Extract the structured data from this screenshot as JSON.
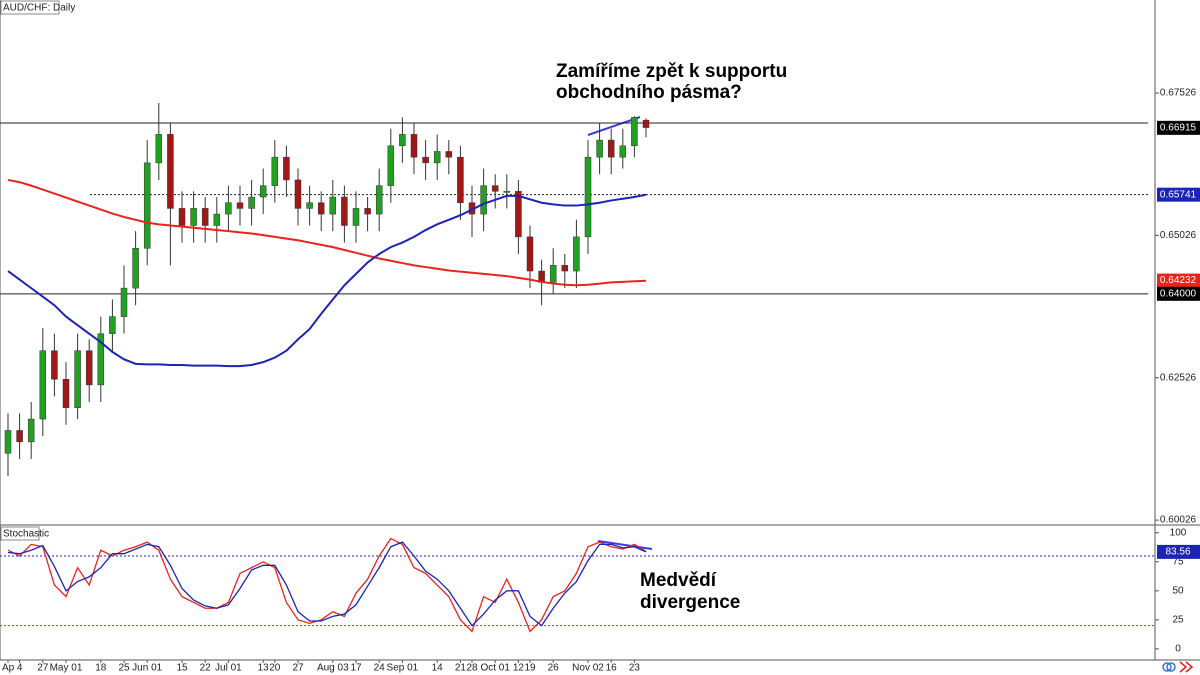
{
  "chart_data": [
    {
      "type": "candlestick",
      "title": "AUD/CHF: Daily",
      "categories": [
        "Ap",
        "4",
        null,
        "27",
        null,
        "May 01",
        null,
        null,
        "18",
        null,
        "25",
        null,
        "Jun 01",
        null,
        null,
        "15",
        null,
        "22",
        null,
        "Jul 01",
        null,
        null,
        "13",
        "20",
        null,
        "27",
        null,
        null,
        "Aug 03",
        null,
        "17",
        null,
        "24",
        null,
        "Sep 01",
        null,
        null,
        "14",
        null,
        "21",
        "28",
        null,
        "Oct 01",
        null,
        "12",
        "19",
        null,
        "26",
        null,
        null,
        "Nov 02",
        null,
        "16",
        null,
        "23",
        null
      ],
      "open": [
        0.612,
        0.616,
        0.614,
        0.618,
        0.63,
        0.625,
        0.62,
        0.63,
        0.624,
        0.633,
        0.636,
        0.641,
        0.648,
        0.663,
        0.668,
        0.655,
        0.652,
        0.655,
        0.652,
        0.654,
        0.656,
        0.655,
        0.657,
        0.659,
        0.664,
        0.66,
        0.655,
        0.656,
        0.654,
        0.657,
        0.652,
        0.655,
        0.654,
        0.659,
        0.666,
        0.668,
        0.664,
        0.663,
        0.665,
        0.664,
        0.656,
        0.654,
        0.659,
        0.658,
        0.658,
        0.65,
        0.644,
        0.642,
        0.645,
        0.644,
        0.65,
        0.664,
        0.667,
        0.664,
        0.666,
        0.6705
      ],
      "high": [
        0.619,
        0.619,
        0.621,
        0.634,
        0.633,
        0.628,
        0.633,
        0.632,
        0.636,
        0.639,
        0.645,
        0.651,
        0.667,
        0.6735,
        0.67,
        0.658,
        0.658,
        0.657,
        0.657,
        0.659,
        0.659,
        0.66,
        0.662,
        0.667,
        0.666,
        0.662,
        0.659,
        0.658,
        0.66,
        0.659,
        0.658,
        0.657,
        0.662,
        0.669,
        0.671,
        0.67,
        0.667,
        0.668,
        0.667,
        0.666,
        0.659,
        0.662,
        0.661,
        0.661,
        0.66,
        0.652,
        0.646,
        0.648,
        0.647,
        0.653,
        0.667,
        0.67,
        0.669,
        0.669,
        0.6712,
        0.6708
      ],
      "low": [
        0.608,
        0.611,
        0.611,
        0.615,
        0.622,
        0.617,
        0.618,
        0.621,
        0.621,
        0.63,
        0.633,
        0.638,
        0.645,
        0.66,
        0.645,
        0.649,
        0.649,
        0.649,
        0.649,
        0.651,
        0.652,
        0.652,
        0.654,
        0.656,
        0.657,
        0.652,
        0.652,
        0.651,
        0.651,
        0.649,
        0.649,
        0.651,
        0.651,
        0.656,
        0.663,
        0.661,
        0.66,
        0.66,
        0.661,
        0.653,
        0.65,
        0.651,
        0.655,
        0.655,
        0.647,
        0.641,
        0.638,
        0.64,
        0.641,
        0.641,
        0.647,
        0.661,
        0.661,
        0.662,
        0.664,
        0.6675
      ],
      "close": [
        0.616,
        0.614,
        0.618,
        0.63,
        0.625,
        0.62,
        0.63,
        0.624,
        0.633,
        0.636,
        0.641,
        0.648,
        0.663,
        0.668,
        0.655,
        0.652,
        0.655,
        0.652,
        0.654,
        0.656,
        0.655,
        0.657,
        0.659,
        0.664,
        0.66,
        0.655,
        0.656,
        0.654,
        0.657,
        0.652,
        0.655,
        0.654,
        0.659,
        0.666,
        0.668,
        0.664,
        0.663,
        0.665,
        0.664,
        0.656,
        0.654,
        0.659,
        0.658,
        0.658,
        0.65,
        0.644,
        0.642,
        0.645,
        0.644,
        0.65,
        0.664,
        0.667,
        0.664,
        0.666,
        0.671,
        0.6692
      ],
      "up_color": "#22a022",
      "down_color": "#a01818",
      "series": [
        {
          "color": "#e8241c",
          "values": [
            0.66,
            0.6596,
            0.659,
            0.6583,
            0.6576,
            0.6569,
            0.6562,
            0.6555,
            0.6548,
            0.6541,
            0.6535,
            0.653,
            0.6525,
            0.6522,
            0.652,
            0.6518,
            0.6516,
            0.6514,
            0.6512,
            0.651,
            0.6508,
            0.6506,
            0.6503,
            0.65,
            0.6497,
            0.6494,
            0.649,
            0.6486,
            0.6482,
            0.6477,
            0.6472,
            0.6467,
            0.6462,
            0.6458,
            0.6454,
            0.645,
            0.6447,
            0.6444,
            0.6441,
            0.6439,
            0.6437,
            0.6435,
            0.6433,
            0.6431,
            0.6428,
            0.6425,
            0.6421,
            0.6418,
            0.6416,
            0.6415,
            0.6416,
            0.6418,
            0.642,
            0.6421,
            0.6422,
            0.6423
          ]
        },
        {
          "color": "#1c24b8",
          "values": [
            0.644,
            0.6425,
            0.641,
            0.6395,
            0.638,
            0.636,
            0.6345,
            0.633,
            0.6315,
            0.6298,
            0.6285,
            0.6277,
            0.6276,
            0.6276,
            0.6275,
            0.6275,
            0.6274,
            0.6274,
            0.6274,
            0.6273,
            0.6273,
            0.6275,
            0.628,
            0.6288,
            0.63,
            0.632,
            0.6338,
            0.6365,
            0.639,
            0.6415,
            0.6435,
            0.6455,
            0.647,
            0.6482,
            0.649,
            0.65,
            0.6512,
            0.6522,
            0.653,
            0.6538,
            0.6548,
            0.6558,
            0.6565,
            0.6572,
            0.6572,
            0.6566,
            0.656,
            0.6557,
            0.6555,
            0.6555,
            0.6557,
            0.656,
            0.6564,
            0.6567,
            0.657,
            0.6574
          ]
        }
      ],
      "ylim": [
        0.5994,
        0.6916
      ],
      "yticks": [
        0.67526,
        0.65026,
        0.62526,
        0.60026
      ],
      "hlines": [
        0.67,
        0.64,
        0.65741
      ],
      "hline_styles": [
        "solid",
        "solid",
        "dotted"
      ],
      "markers": [
        {
          "value": 0.66915,
          "color": "#000000"
        },
        {
          "value": 0.65741,
          "color": "#1c24b8"
        },
        {
          "value": 0.64232,
          "color": "#e8241c"
        },
        {
          "value": 0.64,
          "label": "0.64000",
          "color": "#000000"
        }
      ],
      "annotation": [
        "Zamíříme zpět k supportu",
        "obchodního pásma?"
      ]
    },
    {
      "type": "stochastic",
      "title": "Stochastic",
      "series": [
        {
          "color": "#e8241c",
          "values": [
            85,
            80,
            90,
            88,
            55,
            45,
            70,
            55,
            85,
            80,
            85,
            88,
            92,
            85,
            60,
            45,
            40,
            35,
            35,
            40,
            65,
            70,
            75,
            70,
            40,
            25,
            22,
            25,
            32,
            28,
            48,
            60,
            80,
            95,
            90,
            70,
            65,
            55,
            45,
            25,
            15,
            45,
            40,
            60,
            40,
            15,
            25,
            45,
            50,
            65,
            88,
            92,
            88,
            86,
            90,
            84
          ]
        },
        {
          "color": "#1c24b8",
          "values": [
            83,
            82,
            85,
            89,
            71,
            50,
            58,
            62,
            70,
            82,
            82,
            86,
            90,
            88,
            72,
            52,
            42,
            37,
            35,
            38,
            52,
            68,
            72,
            72,
            55,
            32,
            24,
            24,
            28,
            30,
            38,
            54,
            70,
            88,
            92,
            80,
            67,
            60,
            50,
            35,
            20,
            30,
            42,
            50,
            50,
            28,
            20,
            35,
            48,
            58,
            76,
            90,
            90,
            87,
            88,
            83.56
          ]
        }
      ],
      "ylim": [
        -9.6,
        105
      ],
      "yticks": [
        100,
        75,
        50,
        25,
        0
      ],
      "levels": [
        80,
        20
      ],
      "level_colors": [
        "#1c24b8",
        "#e8241c"
      ],
      "markers": [
        {
          "value": 83.56,
          "color": "#1c24b8"
        }
      ],
      "annotation": [
        "Medvědí",
        "divergence"
      ]
    }
  ]
}
